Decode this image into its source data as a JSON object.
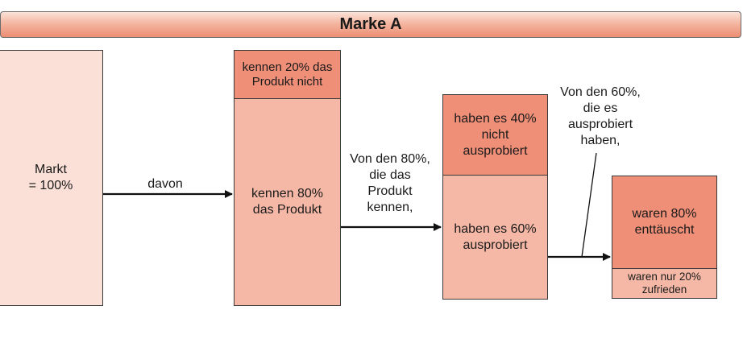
{
  "title": "Marke A",
  "market": {
    "label": "Markt\n= 100%"
  },
  "connector_1": {
    "label": "davon"
  },
  "stage_awareness": {
    "unaware": "kennen 20% das\nProdukt nicht",
    "aware": "kennen 80%\ndas Produkt"
  },
  "connector_2": {
    "label": "Von den 80%,\ndie das\nProdukt\nkennen,"
  },
  "stage_trial": {
    "not_tried": "haben es 40%\nnicht\nausprobiert",
    "tried": "haben es 60%\nausprobiert"
  },
  "connector_3": {
    "label": "Von den 60%,\ndie es\nausprobiert\nhaben,"
  },
  "stage_satisfaction": {
    "disappointed": "waren 80%\nenttäuscht",
    "satisfied": "waren nur 20%\nzufrieden"
  },
  "colors": {
    "light": "#fbe0d7",
    "mid": "#f6b8a6",
    "dark": "#ef8f78"
  }
}
